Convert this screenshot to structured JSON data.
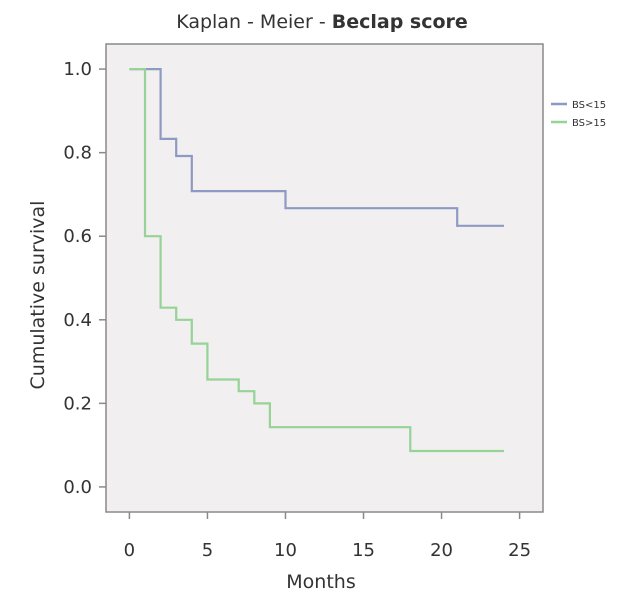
{
  "chart_data": {
    "type": "line",
    "title_prefix": "Kaplan - Meier - ",
    "title_bold": "Beclap score",
    "xlabel": "Months",
    "ylabel": "Cumulative survival",
    "xlim": [
      -1.5,
      26.5
    ],
    "ylim": [
      -0.06,
      1.06
    ],
    "x_ticks": [
      0,
      5,
      10,
      15,
      20,
      25
    ],
    "x_tick_labels": [
      "0",
      "5",
      "10",
      "15",
      "20",
      "25"
    ],
    "y_ticks": [
      0.0,
      0.2,
      0.4,
      0.6,
      0.8,
      1.0
    ],
    "y_tick_labels": [
      "0.0",
      "0.2",
      "0.4",
      "0.6",
      "0.8",
      "1.0"
    ],
    "grid": false,
    "legend_position": "top-right, outside plot",
    "plot_background": "#f1efef",
    "series": [
      {
        "name": "BS<15",
        "color": "#8f9ac4",
        "step_points": [
          [
            0,
            1.0
          ],
          [
            2.0,
            0.833
          ],
          [
            3.0,
            0.792
          ],
          [
            4.0,
            0.708
          ],
          [
            10.0,
            0.667
          ],
          [
            21.0,
            0.625
          ],
          [
            24.0,
            0.625
          ]
        ]
      },
      {
        "name": "BS>15",
        "color": "#95d396",
        "step_points": [
          [
            0,
            1.0
          ],
          [
            1.0,
            0.6
          ],
          [
            2.0,
            0.429
          ],
          [
            3.0,
            0.4
          ],
          [
            4.0,
            0.343
          ],
          [
            5.0,
            0.257
          ],
          [
            7.0,
            0.229
          ],
          [
            8.0,
            0.2
          ],
          [
            9.0,
            0.143
          ],
          [
            18.0,
            0.086
          ],
          [
            24.0,
            0.086
          ]
        ]
      }
    ]
  }
}
